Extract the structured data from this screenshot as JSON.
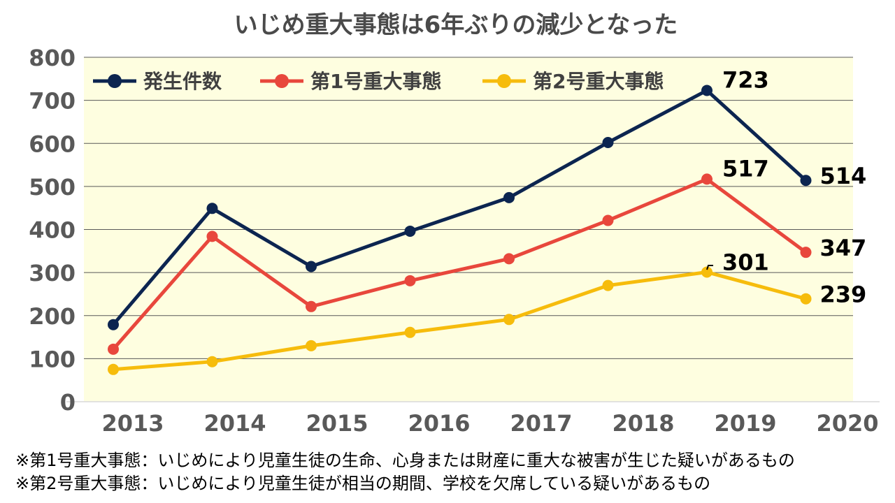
{
  "chart_data": {
    "type": "line",
    "title": "いじめ重大事態は6年ぶりの減少となった",
    "categories": [
      "2013",
      "2014",
      "2015",
      "2016",
      "2017",
      "2018",
      "2019",
      "2020"
    ],
    "ylim": [
      0,
      800
    ],
    "yticks": [
      "0",
      "100",
      "200",
      "300",
      "400",
      "500",
      "600",
      "700",
      "800"
    ],
    "grid": true,
    "legend_position": "top-left",
    "series": [
      {
        "name": "発生件数",
        "color": "#0c2550",
        "values": [
          179,
          449,
          314,
          396,
          474,
          602,
          723,
          514
        ]
      },
      {
        "name": "第1号重大事態",
        "color": "#e8473c",
        "values": [
          122,
          384,
          221,
          281,
          332,
          421,
          517,
          347
        ]
      },
      {
        "name": "第2号重大事態",
        "color": "#f6bc0c",
        "values": [
          75,
          93,
          130,
          161,
          191,
          270,
          301,
          239
        ]
      }
    ],
    "data_labels": [
      {
        "text": "723",
        "series": 0,
        "index": 6
      },
      {
        "text": "514",
        "series": 0,
        "index": 7
      },
      {
        "text": "517",
        "series": 1,
        "index": 6
      },
      {
        "text": "347",
        "series": 1,
        "index": 7
      },
      {
        "text": "301",
        "series": 2,
        "index": 6
      },
      {
        "text": "239",
        "series": 2,
        "index": 7
      }
    ],
    "plot_background": "#fefee0",
    "grid_color": "#595959"
  },
  "footnotes": [
    "※第1号重大事態：いじめにより児童生徒の生命、心身または財産に重大な被害が生じた疑いがあるもの",
    "※第2号重大事態：いじめにより児童生徒が相当の期間、学校を欠席している疑いがあるもの"
  ]
}
